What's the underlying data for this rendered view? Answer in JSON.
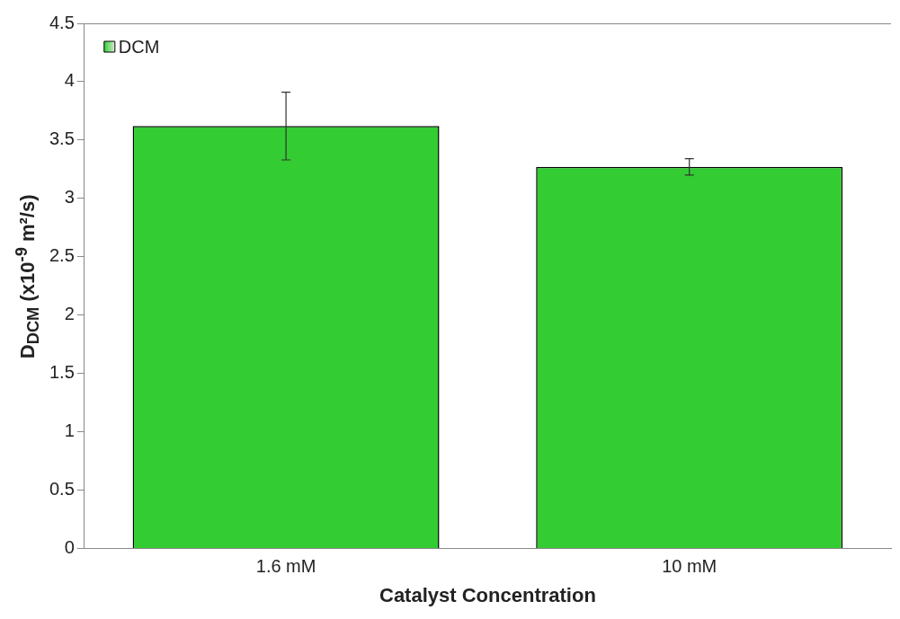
{
  "chart_data": {
    "type": "bar",
    "xlabel": "Catalyst Concentration",
    "ylabel": "D$_{DCM}$ (x10$^{-9}$ m²/s)",
    "categories": [
      "1.6 mM",
      "10 mM"
    ],
    "series": [
      {
        "name": "DCM",
        "color": "#33cc33",
        "values": [
          3.62,
          3.27
        ],
        "errors": [
          0.29,
          0.07
        ]
      }
    ],
    "ylim": [
      0,
      4.5
    ],
    "yticks": [
      0,
      0.5,
      1,
      1.5,
      2,
      2.5,
      3,
      3.5,
      4,
      4.5
    ],
    "grid": false,
    "legend": "top left"
  }
}
